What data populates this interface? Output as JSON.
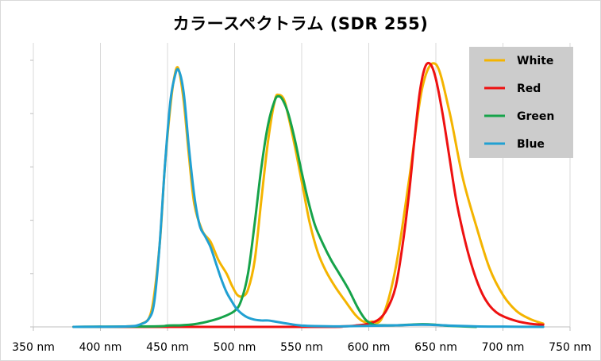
{
  "chart_data": {
    "type": "line",
    "title": "カラースペクトラム (SDR 255)",
    "xlabel": "",
    "ylabel": "",
    "xlim": [
      350,
      750
    ],
    "ylim": [
      0,
      1.0
    ],
    "x_ticks": [
      350,
      400,
      450,
      500,
      550,
      600,
      650,
      700,
      750
    ],
    "x_tick_labels": [
      "350 nm",
      "400 nm",
      "450 nm",
      "500 nm",
      "550 nm",
      "600 nm",
      "650 nm",
      "700 nm",
      "750 nm"
    ],
    "y_tick_count": 5,
    "grid": true,
    "legend_position": "top-right",
    "series": [
      {
        "name": "White",
        "color": "#f4b400",
        "x": [
          380,
          420,
          430,
          438,
          444,
          448,
          452,
          455,
          458,
          462,
          466,
          470,
          476,
          482,
          488,
          494,
          498,
          502,
          506,
          510,
          515,
          520,
          525,
          530,
          533,
          537,
          541,
          546,
          551,
          556,
          562,
          568,
          575,
          582,
          590,
          596,
          602,
          610,
          620,
          630,
          640,
          650,
          660,
          670,
          680,
          690,
          700,
          710,
          720,
          730
        ],
        "y": [
          0,
          0.002,
          0.01,
          0.06,
          0.3,
          0.6,
          0.82,
          0.935,
          0.97,
          0.85,
          0.64,
          0.46,
          0.36,
          0.32,
          0.25,
          0.2,
          0.155,
          0.12,
          0.115,
          0.14,
          0.25,
          0.48,
          0.7,
          0.85,
          0.87,
          0.85,
          0.77,
          0.65,
          0.52,
          0.39,
          0.28,
          0.21,
          0.15,
          0.1,
          0.045,
          0.02,
          0.02,
          0.035,
          0.22,
          0.55,
          0.9,
          0.985,
          0.81,
          0.56,
          0.38,
          0.22,
          0.12,
          0.06,
          0.03,
          0.012
        ]
      },
      {
        "name": "Red",
        "color": "#ee1111",
        "x": [
          380,
          560,
          580,
          590,
          600,
          608,
          614,
          620,
          625,
          630,
          634,
          638,
          642,
          646,
          650,
          655,
          660,
          665,
          670,
          675,
          680,
          685,
          690,
          695,
          700,
          710,
          720,
          730
        ],
        "y": [
          0,
          0,
          0.002,
          0.005,
          0.012,
          0.03,
          0.07,
          0.15,
          0.3,
          0.5,
          0.7,
          0.88,
          0.975,
          0.985,
          0.93,
          0.8,
          0.64,
          0.48,
          0.36,
          0.26,
          0.18,
          0.12,
          0.08,
          0.055,
          0.04,
          0.022,
          0.012,
          0.008
        ]
      },
      {
        "name": "Green",
        "color": "#16a34a",
        "x": [
          380,
          440,
          450,
          460,
          470,
          480,
          490,
          500,
          505,
          510,
          515,
          520,
          525,
          530,
          533,
          536,
          540,
          545,
          550,
          555,
          560,
          566,
          572,
          578,
          585,
          592,
          598,
          604,
          612,
          620,
          630,
          640,
          650,
          660,
          670,
          680
        ],
        "y": [
          0,
          0.002,
          0.005,
          0.006,
          0.01,
          0.02,
          0.035,
          0.06,
          0.1,
          0.2,
          0.39,
          0.6,
          0.76,
          0.85,
          0.865,
          0.85,
          0.8,
          0.7,
          0.58,
          0.47,
          0.38,
          0.31,
          0.25,
          0.2,
          0.14,
          0.07,
          0.025,
          0.008,
          0.006,
          0.006,
          0.008,
          0.01,
          0.008,
          0.004,
          0.002,
          0
        ]
      },
      {
        "name": "Blue",
        "color": "#21a0d2",
        "x": [
          380,
          420,
          430,
          436,
          440,
          444,
          448,
          452,
          455,
          458,
          462,
          466,
          470,
          474,
          478,
          482,
          486,
          490,
          494,
          498,
          502,
          508,
          514,
          520,
          525,
          530,
          536,
          542,
          550,
          560,
          580,
          600,
          620,
          640,
          660,
          680,
          700,
          730
        ],
        "y": [
          0,
          0.002,
          0.01,
          0.03,
          0.09,
          0.3,
          0.6,
          0.84,
          0.93,
          0.965,
          0.88,
          0.67,
          0.49,
          0.38,
          0.34,
          0.3,
          0.24,
          0.18,
          0.13,
          0.095,
          0.065,
          0.04,
          0.028,
          0.024,
          0.024,
          0.02,
          0.015,
          0.01,
          0.005,
          0.003,
          0.002,
          0.004,
          0.006,
          0.008,
          0.005,
          0.002,
          0.001,
          0
        ]
      }
    ]
  }
}
